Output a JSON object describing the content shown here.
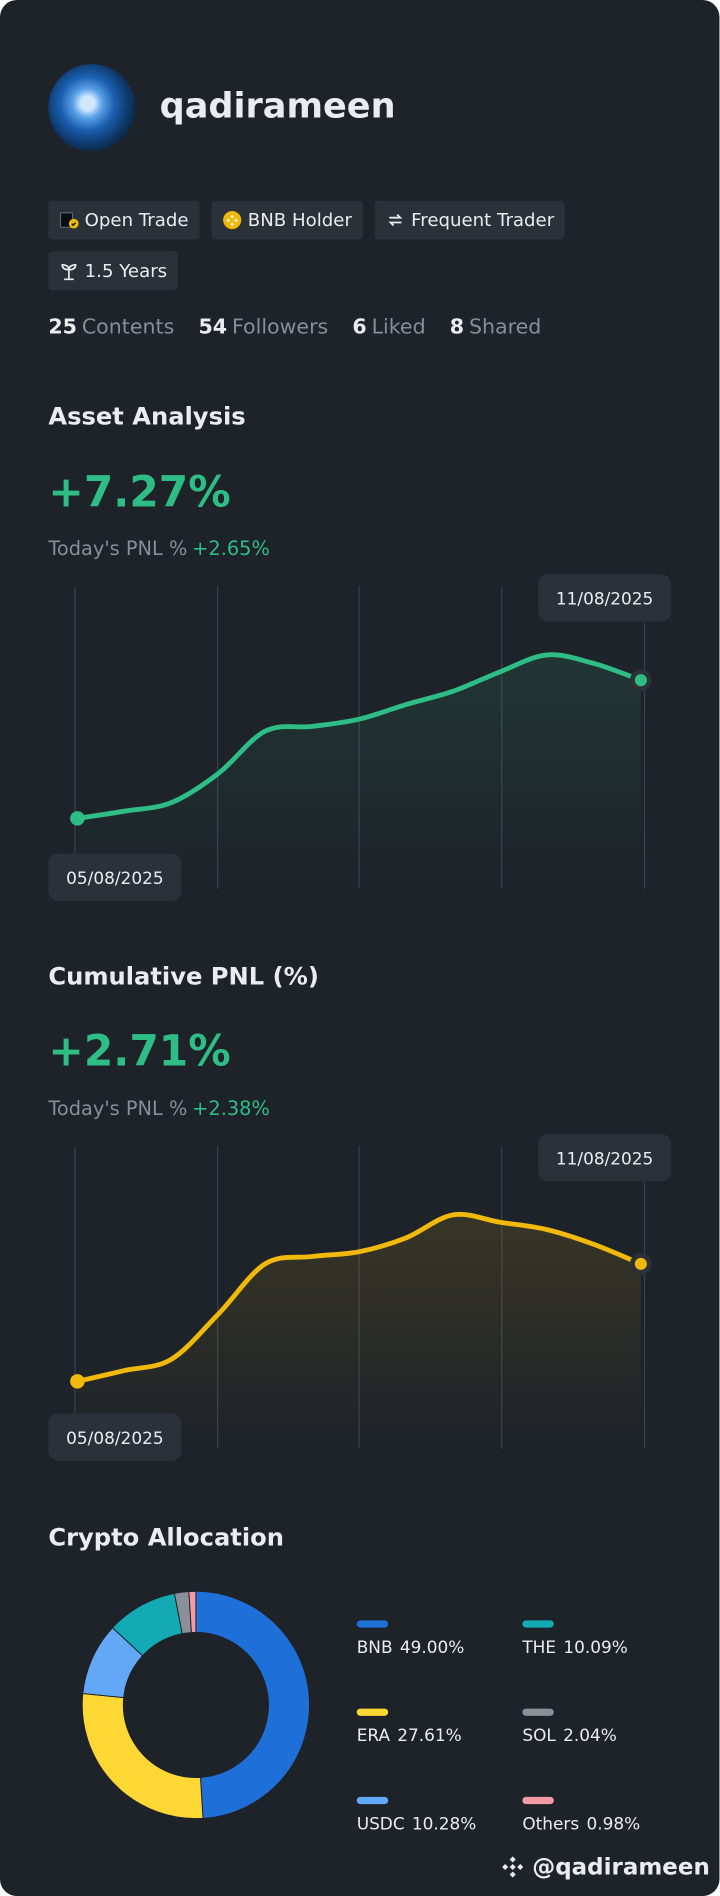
{
  "profile": {
    "username": "qadirameen",
    "badges": [
      "Open Trade",
      "BNB Holder",
      "Frequent Trader",
      "1.5 Years"
    ],
    "stats": [
      {
        "value": 25,
        "label": "Contents"
      },
      {
        "value": 54,
        "label": "Followers"
      },
      {
        "value": 6,
        "label": "Liked"
      },
      {
        "value": 8,
        "label": "Shared"
      }
    ]
  },
  "asset_analysis": {
    "title": "Asset Analysis",
    "value": "+7.27%",
    "today_label": "Today's PNL %",
    "today_value": "+2.65%",
    "chart": {
      "type": "line",
      "x": [
        "05/08/2025",
        null,
        null,
        null,
        null,
        null,
        null,
        null,
        null,
        null,
        null,
        null,
        "11/08/2025"
      ],
      "values": [
        0,
        0.38,
        0.83,
        2.36,
        4.59,
        4.84,
        5.22,
        5.99,
        6.69,
        7.71,
        8.6,
        8.15,
        7.27
      ],
      "color": "#2ebd85",
      "ylim": [
        -3.7,
        12.2
      ]
    }
  },
  "cumulative_pnl": {
    "title": "Cumulative PNL (%)",
    "value": "+2.71%",
    "today_label": "Today's PNL %",
    "today_value": "+2.38%",
    "chart": {
      "type": "line",
      "x": [
        "05/08/2025",
        null,
        null,
        null,
        null,
        null,
        null,
        null,
        null,
        null,
        null,
        null,
        "11/08/2025"
      ],
      "values": [
        0,
        0.25,
        0.51,
        1.55,
        2.71,
        2.88,
        2.99,
        3.31,
        3.84,
        3.67,
        3.5,
        3.16,
        2.71
      ],
      "color": "#f0b90b",
      "ylim": [
        -1.55,
        5.42
      ]
    }
  },
  "crypto_allocation": {
    "title": "Crypto Allocation",
    "chart": {
      "type": "donut",
      "categories": [
        "BNB",
        "ERA",
        "USDC",
        "THE",
        "SOL",
        "Others"
      ],
      "values": [
        49.0,
        27.61,
        10.28,
        10.09,
        2.04,
        0.98
      ],
      "value_labels": [
        "49.00%",
        "27.61%",
        "10.28%",
        "10.09%",
        "2.04%",
        "0.98%"
      ],
      "colors": [
        "#1f6fd9",
        "#fdd835",
        "#62a8f7",
        "#14aab4",
        "#8a8f98",
        "#f49aa6"
      ]
    }
  },
  "footer": {
    "handle": "@qadirameen"
  }
}
